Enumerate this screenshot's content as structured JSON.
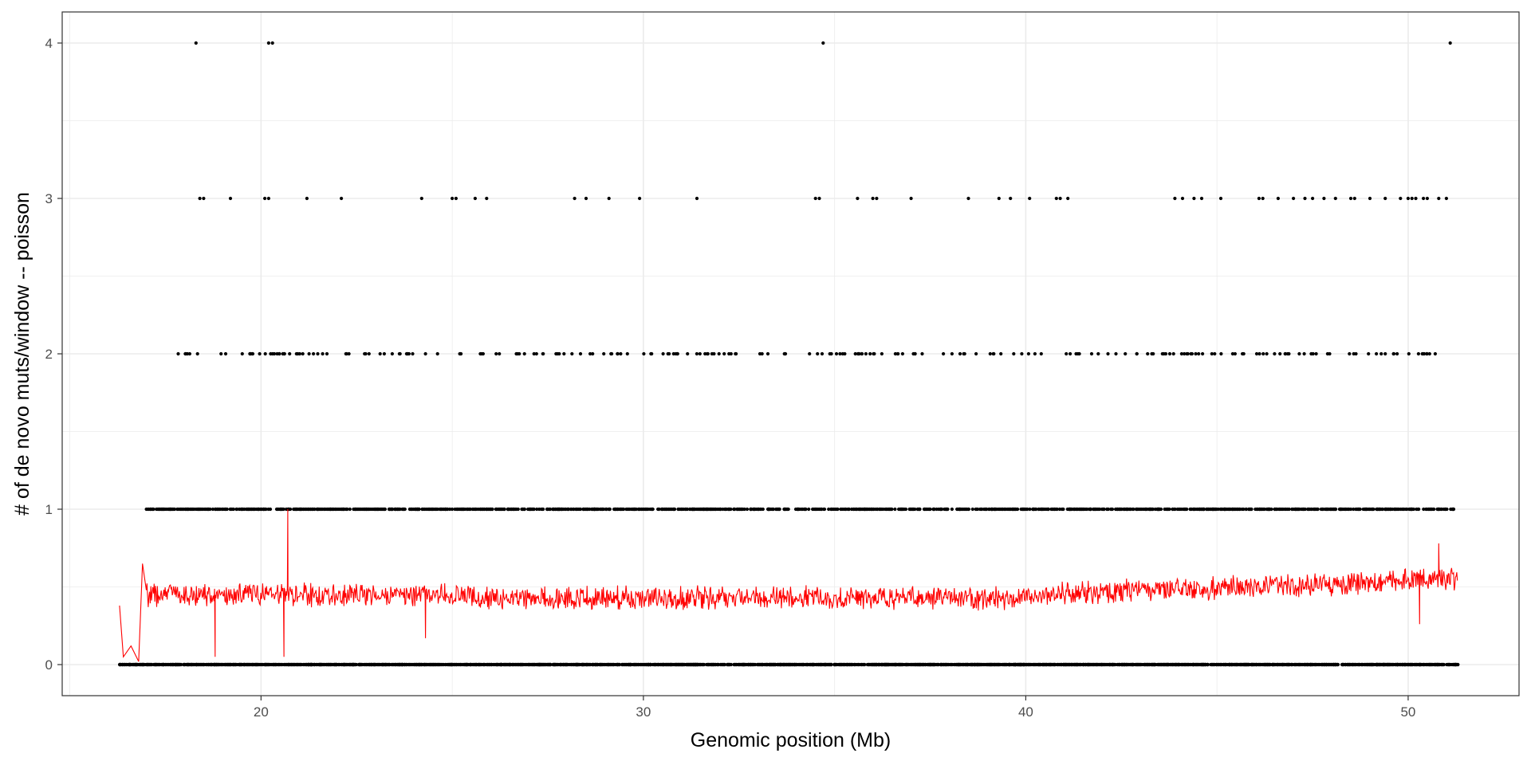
{
  "chart_data": {
    "type": "scatter",
    "xlabel": "Genomic position (Mb)",
    "ylabel": "# of de novo muts/window -- poisson",
    "xlim": [
      14.8,
      52.9
    ],
    "ylim": [
      -0.2,
      4.2
    ],
    "x_ticks": [
      20,
      30,
      40,
      50
    ],
    "y_ticks": [
      0,
      1,
      2,
      3,
      4
    ],
    "x_tick_labels": [
      "20",
      "30",
      "40",
      "50"
    ],
    "y_tick_labels": [
      "0",
      "1",
      "2",
      "3",
      "4"
    ],
    "grid": true,
    "legend": "none",
    "colors": {
      "points": "#000000",
      "line": "#ff0000",
      "grid": "#ebebeb",
      "panel_border": "#333333"
    },
    "series": [
      {
        "kind": "points",
        "x_range": [
          16.3,
          51.3
        ],
        "levels": [
          {
            "y": 0,
            "count": 3500,
            "x_range": [
              16.3,
              51.3
            ]
          },
          {
            "y": 1,
            "count": 1500,
            "x_range": [
              17.0,
              51.2
            ]
          },
          {
            "y": 2,
            "count": 230,
            "x_range": [
              17.6,
              51.0
            ]
          },
          {
            "y": 3,
            "x": [
              18.4,
              18.5,
              19.2,
              20.1,
              20.2,
              21.2,
              22.1,
              24.2,
              25.0,
              25.1,
              25.6,
              25.9,
              28.2,
              28.5,
              29.1,
              29.9,
              31.4,
              34.5,
              34.6,
              35.6,
              36.0,
              36.1,
              37.0,
              38.5,
              39.3,
              39.6,
              40.1,
              40.8,
              40.9,
              41.1,
              43.9,
              44.1,
              44.4,
              44.6,
              45.1,
              46.1,
              46.2,
              46.6,
              47.0,
              47.3,
              47.5,
              47.8,
              48.1,
              48.5,
              48.6,
              49.0,
              49.4,
              49.8,
              50.0,
              50.1,
              50.2,
              50.4,
              50.5,
              50.8,
              51.0
            ]
          },
          {
            "y": 4,
            "x": [
              18.3,
              20.2,
              20.3,
              34.7,
              51.1
            ]
          }
        ]
      },
      {
        "kind": "line",
        "x_range": [
          16.3,
          51.3
        ],
        "baseline": 0.45,
        "trend_end": 0.55,
        "notable_points": [
          {
            "x": 16.3,
            "y": 0.38
          },
          {
            "x": 16.4,
            "y": 0.05
          },
          {
            "x": 16.6,
            "y": 0.12
          },
          {
            "x": 16.8,
            "y": 0.02
          },
          {
            "x": 16.9,
            "y": 0.65
          },
          {
            "x": 18.8,
            "y": 0.05
          },
          {
            "x": 20.6,
            "y": 0.05
          },
          {
            "x": 20.7,
            "y": 1.0
          },
          {
            "x": 20.8,
            "y": 0.45
          },
          {
            "x": 24.3,
            "y": 0.17
          },
          {
            "x": 50.3,
            "y": 0.26
          },
          {
            "x": 50.8,
            "y": 0.78
          }
        ]
      }
    ]
  }
}
